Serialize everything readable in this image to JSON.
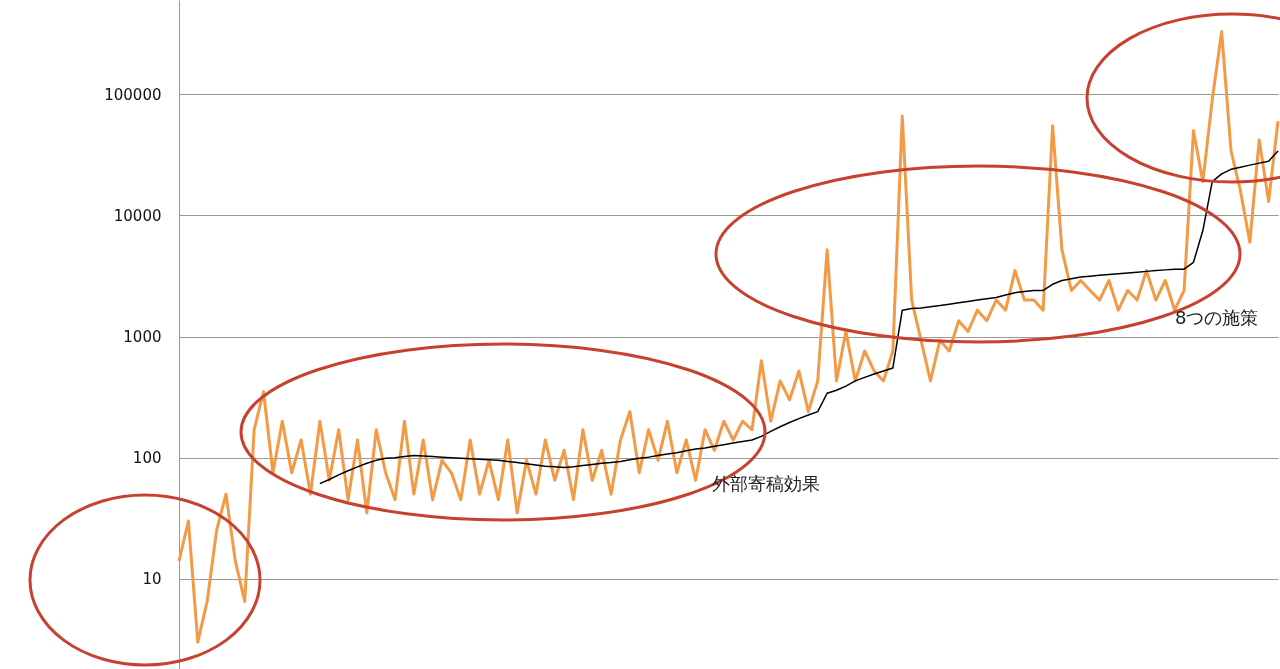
{
  "chart_data": {
    "type": "line",
    "categories": [
      null,
      null,
      null,
      null,
      null,
      null,
      null,
      null,
      null,
      null,
      null,
      null,
      null,
      null,
      null,
      null,
      null,
      null,
      null,
      null,
      null,
      null,
      null,
      null,
      null,
      null,
      null,
      null,
      null,
      null,
      null,
      null,
      null,
      null,
      null,
      null,
      null,
      null,
      null,
      null,
      null,
      null,
      null,
      null,
      null,
      null,
      null,
      null,
      null,
      null,
      null,
      null,
      null,
      null,
      null,
      null,
      null,
      null,
      null,
      null,
      null,
      null,
      null,
      null,
      null,
      null,
      null,
      null,
      null,
      null,
      null,
      null,
      null,
      null,
      null,
      null,
      null,
      null,
      null,
      null,
      null,
      null,
      null,
      null,
      null,
      null,
      null,
      null,
      null,
      null,
      null,
      null,
      null,
      null,
      null,
      null,
      null,
      null,
      null,
      null,
      null,
      null,
      null,
      null,
      null,
      null,
      null,
      null,
      null,
      null,
      null,
      null,
      null,
      null,
      null,
      null,
      null,
      null
    ],
    "series": [
      {
        "color": "#f39a46",
        "values": [
          14,
          30,
          3,
          6.5,
          25,
          50,
          14,
          6.5,
          170,
          350,
          75,
          200,
          75,
          140,
          50,
          200,
          65,
          170,
          45,
          140,
          35,
          170,
          75,
          45,
          200,
          50,
          140,
          45,
          95,
          75,
          45,
          140,
          50,
          95,
          45,
          140,
          35,
          95,
          50,
          140,
          65,
          115,
          45,
          170,
          65,
          115,
          50,
          140,
          240,
          75,
          170,
          95,
          200,
          75,
          140,
          65,
          170,
          115,
          200,
          140,
          200,
          170,
          630,
          200,
          430,
          300,
          520,
          240,
          430,
          5200,
          430,
          1100,
          430,
          760,
          520,
          430,
          760,
          66000,
          2000,
          930,
          430,
          930,
          760,
          1350,
          1100,
          1650,
          1350,
          2000,
          1650,
          3500,
          2000,
          2000,
          1650,
          55000,
          5200,
          2400,
          2900,
          2400,
          2000,
          2900,
          1650,
          2400,
          2000,
          3500,
          2000,
          2900,
          1650,
          2400,
          50000,
          19000,
          90000,
          330000,
          34000,
          16000,
          6000,
          42000,
          13000,
          60000
        ]
      },
      {
        "color": "#000000",
        "values": [
          null,
          null,
          null,
          null,
          null,
          null,
          null,
          null,
          null,
          null,
          null,
          null,
          null,
          null,
          null,
          61,
          66,
          72,
          78,
          84,
          90,
          95,
          99,
          100,
          102,
          104,
          103,
          102,
          101,
          100,
          99,
          98,
          97,
          96,
          95,
          93,
          91,
          89,
          87,
          85,
          84,
          83,
          84,
          86,
          88,
          90,
          91,
          93,
          96,
          99,
          101,
          104,
          107,
          110,
          114,
          118,
          120,
          124,
          128,
          132,
          136,
          140,
          150,
          165,
          180,
          195,
          210,
          225,
          240,
          340,
          360,
          390,
          430,
          460,
          490,
          520,
          550,
          1650,
          1700,
          1720,
          1760,
          1800,
          1850,
          1900,
          1950,
          2000,
          2050,
          2100,
          2200,
          2300,
          2350,
          2400,
          2400,
          2700,
          2900,
          3000,
          3100,
          3150,
          3200,
          3250,
          3300,
          3350,
          3400,
          3450,
          3500,
          3550,
          3600,
          3600,
          4100,
          7500,
          19000,
          22000,
          24000,
          25000,
          26000,
          27000,
          28000,
          34000
        ]
      }
    ],
    "log": true,
    "ylim": [
      1.8,
      600000
    ],
    "yticks": [
      10,
      100,
      1000,
      10000,
      100000
    ],
    "grid": "y",
    "tick_labels": "y",
    "annotations": [
      "外部寄稿効果",
      "8つの施策"
    ]
  }
}
